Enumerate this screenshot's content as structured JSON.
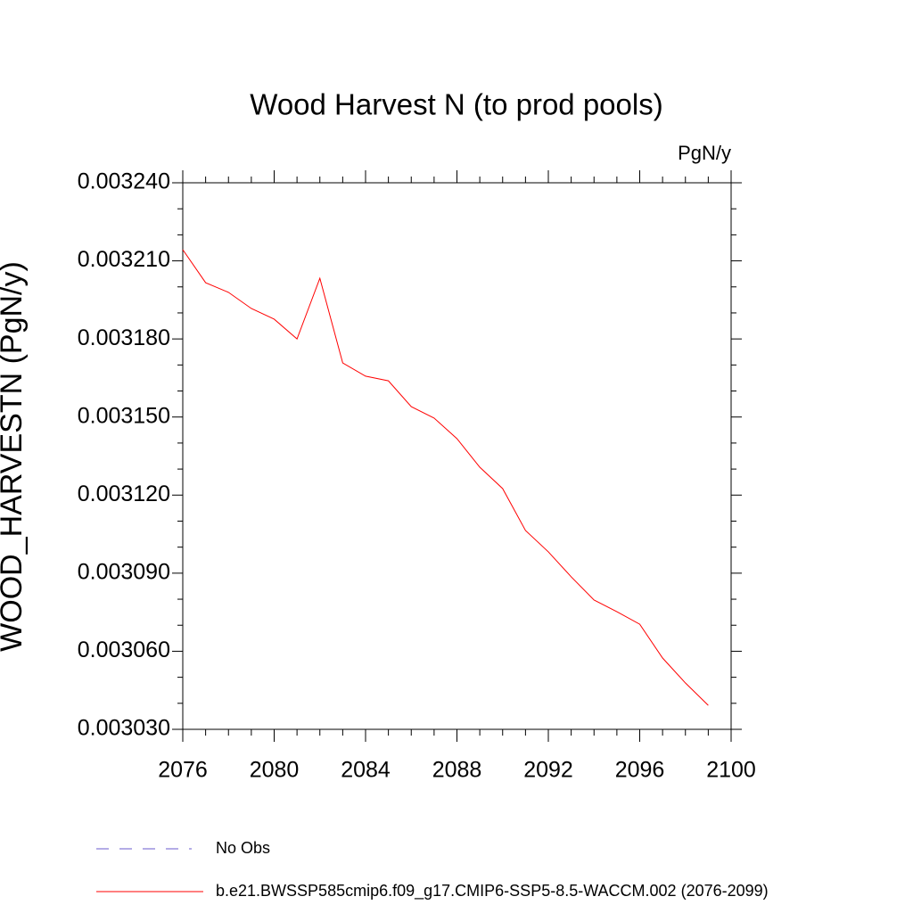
{
  "chart_data": {
    "type": "line",
    "title": "Wood Harvest N (to prod pools)",
    "units": "PgN/y",
    "y_label": "WOOD_HARVESTN  (PgN/y)",
    "x": [
      2076,
      2077,
      2078,
      2079,
      2080,
      2081,
      2082,
      2083,
      2084,
      2085,
      2086,
      2087,
      2088,
      2089,
      2090,
      2091,
      2092,
      2093,
      2094,
      2095,
      2096,
      2097,
      2098,
      2099
    ],
    "series": [
      {
        "name": "b.e21.BWSSP585cmip6.f09_g17.CMIP6-SSP5-8.5-WACCM.002 (2076-2099)",
        "color": "#ff0000",
        "values": [
          0.0032143,
          0.0032016,
          0.0031979,
          0.0031917,
          0.0031876,
          0.00318,
          0.0032033,
          0.0031708,
          0.0031657,
          0.0031639,
          0.003154,
          0.0031496,
          0.0031417,
          0.0031307,
          0.0031225,
          0.0031064,
          0.0030982,
          0.0030886,
          0.0030797,
          0.0030752,
          0.0030704,
          0.0030574,
          0.0030478,
          0.0030392
        ]
      }
    ],
    "reference_entries": [
      {
        "name": "No Obs",
        "color": "#6a5acd",
        "dash": "dashed"
      }
    ],
    "xlim": [
      2076,
      2100
    ],
    "xticks": [
      2076,
      2080,
      2084,
      2088,
      2092,
      2096,
      2100
    ],
    "xminorticks": [
      2077,
      2078,
      2079,
      2081,
      2082,
      2083,
      2085,
      2086,
      2087,
      2089,
      2090,
      2091,
      2093,
      2094,
      2095,
      2097,
      2098,
      2099
    ],
    "ylim": [
      0.00303,
      0.00324
    ],
    "yticks": [
      {
        "value": 0.00303,
        "label": "0.003030"
      },
      {
        "value": 0.00306,
        "label": "0.003060"
      },
      {
        "value": 0.00309,
        "label": "0.003090"
      },
      {
        "value": 0.00312,
        "label": "0.003120"
      },
      {
        "value": 0.00315,
        "label": "0.003150"
      },
      {
        "value": 0.00318,
        "label": "0.003180"
      },
      {
        "value": 0.00321,
        "label": "0.003210"
      },
      {
        "value": 0.00324,
        "label": "0.003240"
      }
    ],
    "yminorticks": [
      0.00304,
      0.00305,
      0.00307,
      0.00308,
      0.0031,
      0.00311,
      0.00313,
      0.00314,
      0.00316,
      0.00317,
      0.00319,
      0.0032,
      0.00322,
      0.00323
    ],
    "grid": false
  }
}
